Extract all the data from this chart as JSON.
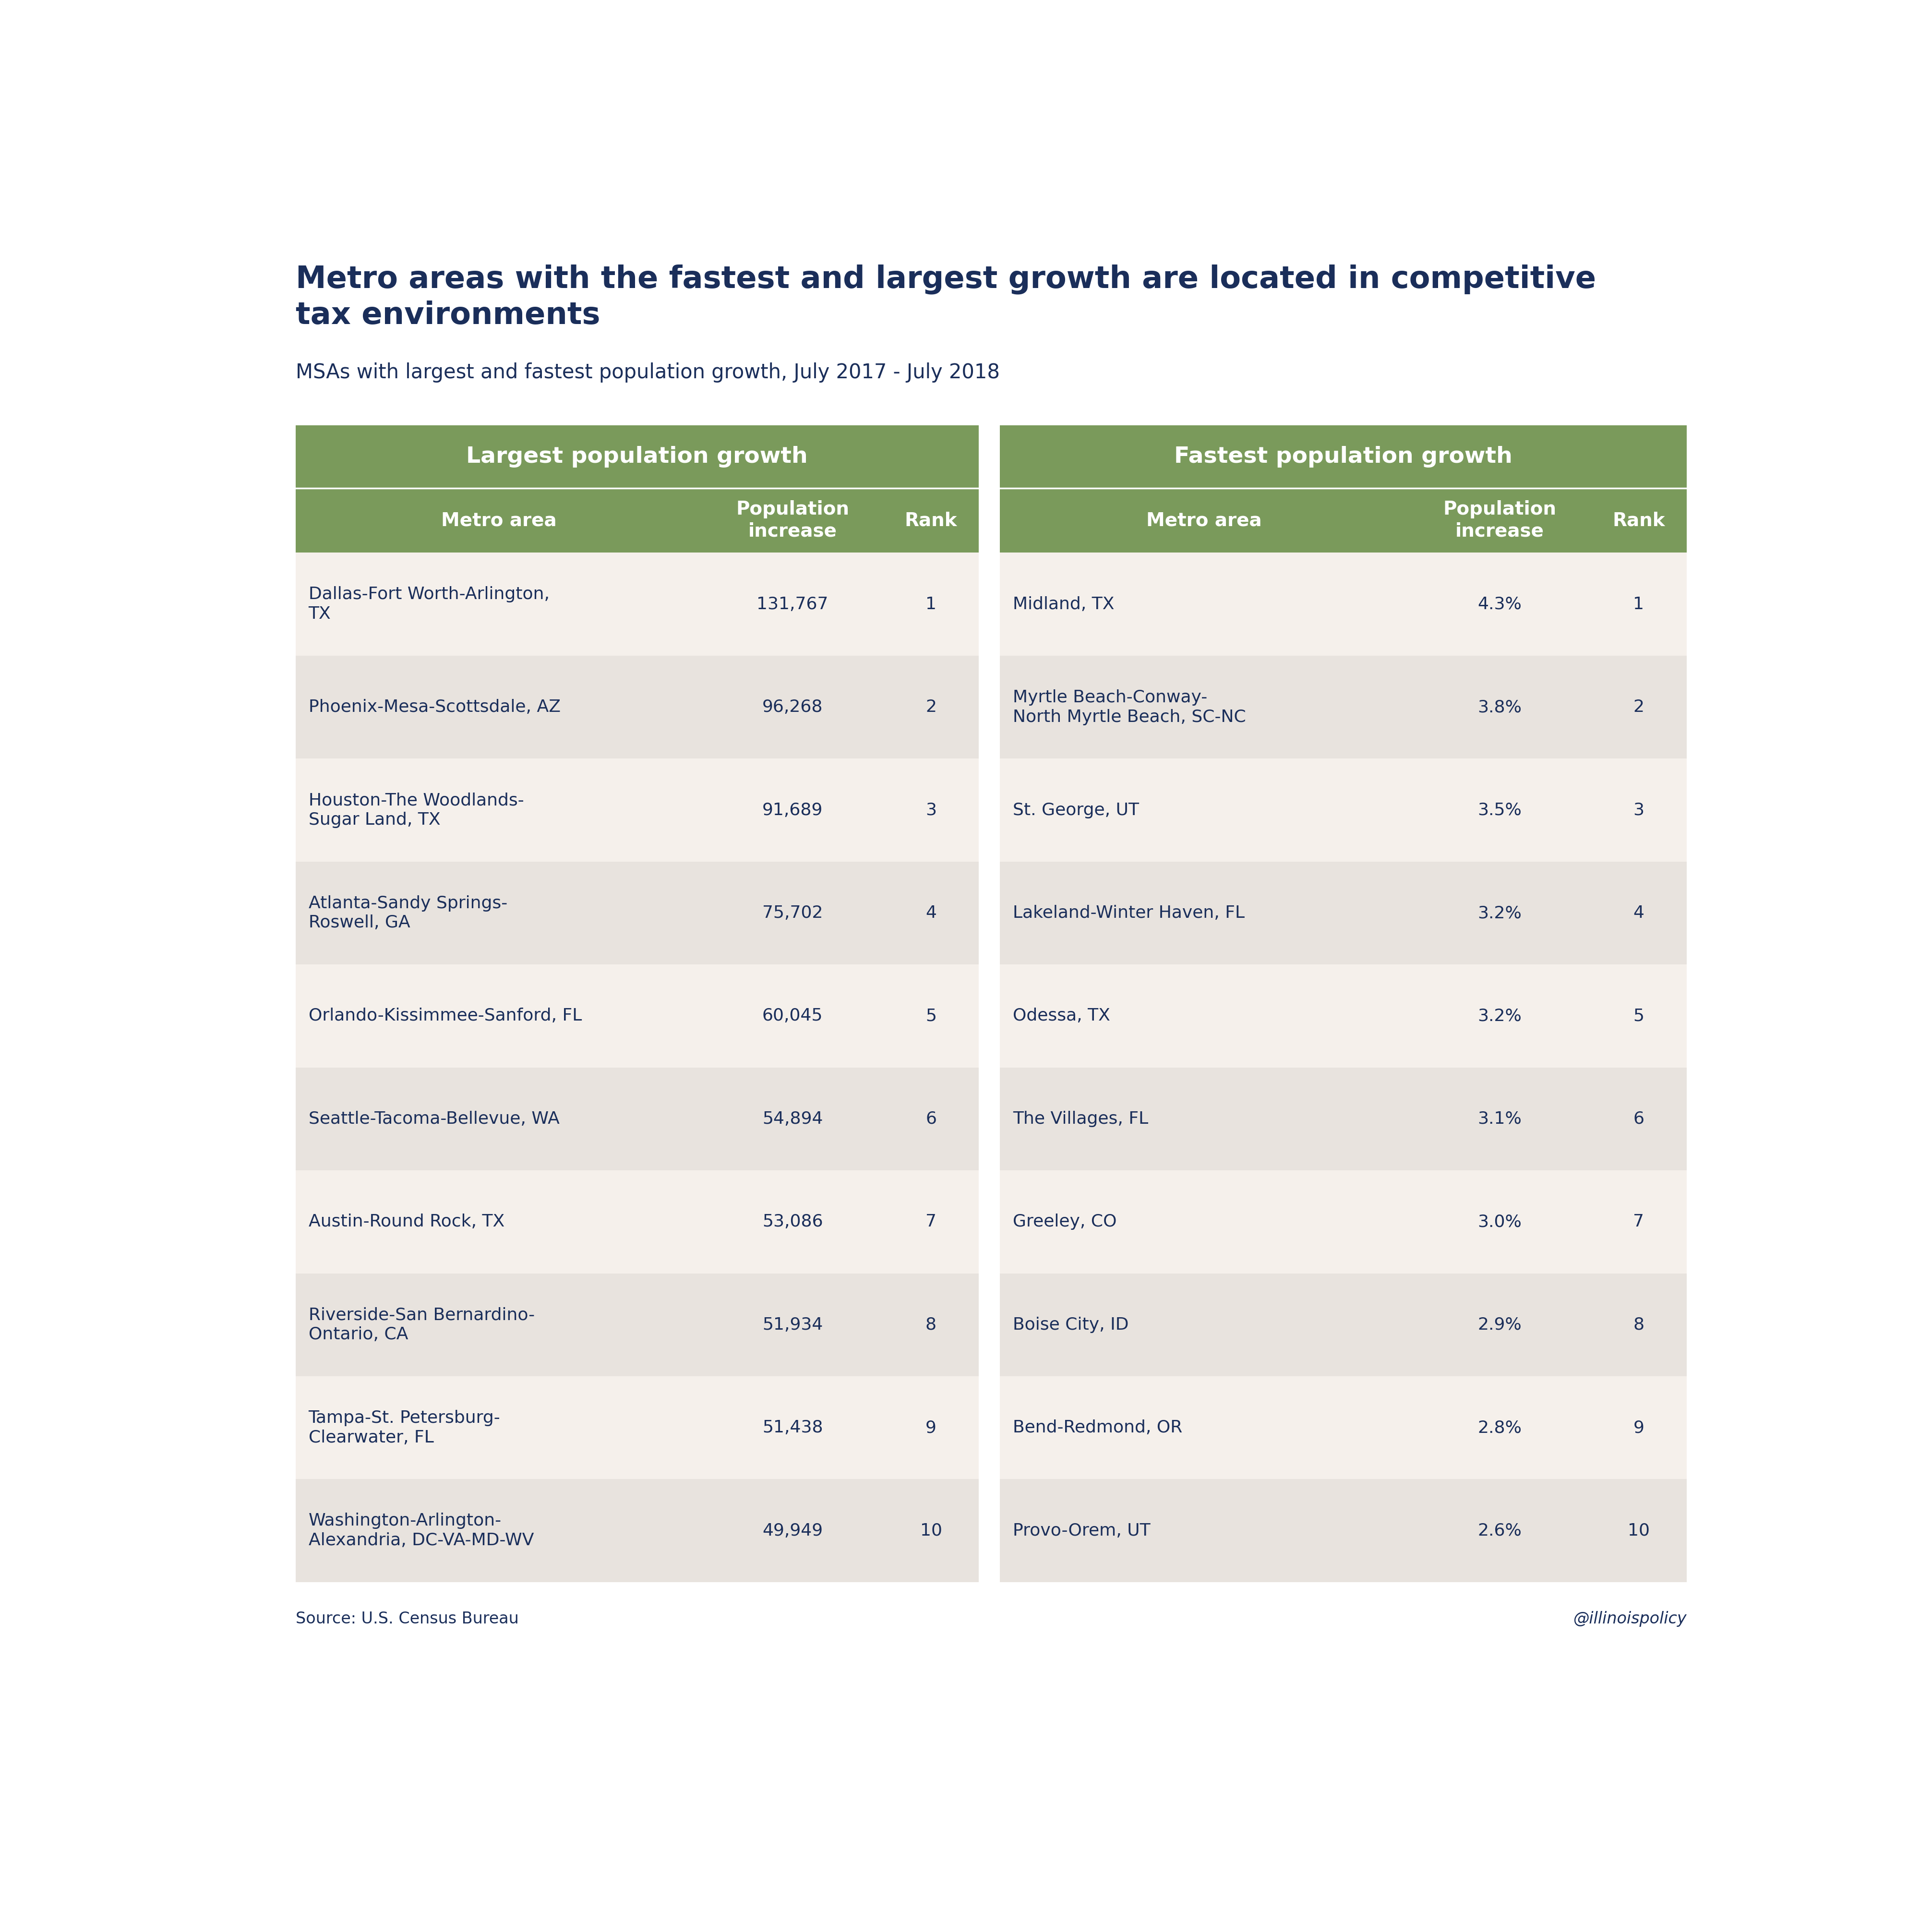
{
  "title": "Metro areas with the fastest and largest growth are located in competitive\ntax environments",
  "subtitle": "MSAs with largest and fastest population growth, July 2017 - July 2018",
  "source": "Source: U.S. Census Bureau",
  "watermark": "@illinoispolicy",
  "header1_left": "Largest population growth",
  "header1_right": "Fastest population growth",
  "col_headers": [
    "Metro area",
    "Population\nincrease",
    "Rank"
  ],
  "largest_data": [
    [
      "Dallas-Fort Worth-Arlington,\nTX",
      "131,767",
      "1"
    ],
    [
      "Phoenix-Mesa-Scottsdale, AZ",
      "96,268",
      "2"
    ],
    [
      "Houston-The Woodlands-\nSugar Land, TX",
      "91,689",
      "3"
    ],
    [
      "Atlanta-Sandy Springs-\nRoswell, GA",
      "75,702",
      "4"
    ],
    [
      "Orlando-Kissimmee-Sanford, FL",
      "60,045",
      "5"
    ],
    [
      "Seattle-Tacoma-Bellevue, WA",
      "54,894",
      "6"
    ],
    [
      "Austin-Round Rock, TX",
      "53,086",
      "7"
    ],
    [
      "Riverside-San Bernardino-\nOntario, CA",
      "51,934",
      "8"
    ],
    [
      "Tampa-St. Petersburg-\nClearwater, FL",
      "51,438",
      "9"
    ],
    [
      "Washington-Arlington-\nAlexandria, DC-VA-MD-WV",
      "49,949",
      "10"
    ]
  ],
  "fastest_data": [
    [
      "Midland, TX",
      "4.3%",
      "1"
    ],
    [
      "Myrtle Beach-Conway-\nNorth Myrtle Beach, SC-NC",
      "3.8%",
      "2"
    ],
    [
      "St. George, UT",
      "3.5%",
      "3"
    ],
    [
      "Lakeland-Winter Haven, FL",
      "3.2%",
      "4"
    ],
    [
      "Odessa, TX",
      "3.2%",
      "5"
    ],
    [
      "The Villages, FL",
      "3.1%",
      "6"
    ],
    [
      "Greeley, CO",
      "3.0%",
      "7"
    ],
    [
      "Boise City, ID",
      "2.9%",
      "8"
    ],
    [
      "Bend-Redmond, OR",
      "2.8%",
      "9"
    ],
    [
      "Provo-Orem, UT",
      "2.6%",
      "10"
    ]
  ],
  "header_bg_color": "#7a9a5b",
  "row_color_odd": "#f5f0eb",
  "row_color_even": "#e8e3de",
  "text_dark": "#1a2e5a",
  "text_white": "#ffffff",
  "bg_color": "#ffffff",
  "title_fontsize": 46,
  "subtitle_fontsize": 30,
  "header1_fontsize": 34,
  "header2_fontsize": 28,
  "data_fontsize": 26,
  "source_fontsize": 24
}
